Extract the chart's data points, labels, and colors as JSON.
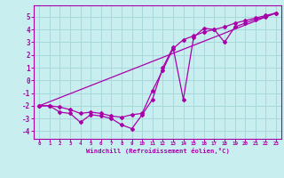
{
  "background_color": "#c8eef0",
  "grid_color": "#a8d8dc",
  "line_color": "#aa00aa",
  "xlabel": "Windchill (Refroidissement éolien,°C)",
  "xlabel_color": "#aa00aa",
  "tick_color": "#aa00aa",
  "xlim": [
    -0.5,
    23.5
  ],
  "ylim": [
    -4.6,
    5.9
  ],
  "yticks": [
    -4,
    -3,
    -2,
    -1,
    0,
    1,
    2,
    3,
    4,
    5
  ],
  "xticks": [
    0,
    1,
    2,
    3,
    4,
    5,
    6,
    7,
    8,
    9,
    10,
    11,
    12,
    13,
    14,
    15,
    16,
    17,
    18,
    19,
    20,
    21,
    22,
    23
  ],
  "line1_x": [
    0,
    1,
    2,
    3,
    4,
    5,
    6,
    7,
    8,
    9,
    10,
    11,
    12,
    13,
    14,
    15,
    16,
    17,
    18,
    19,
    20,
    21,
    22,
    23
  ],
  "line1_y": [
    -2.0,
    -2.0,
    -2.5,
    -2.6,
    -3.3,
    -2.7,
    -2.8,
    -3.0,
    -3.5,
    -3.8,
    -2.7,
    -1.5,
    1.0,
    2.6,
    -1.5,
    3.4,
    4.1,
    4.0,
    3.0,
    4.2,
    4.5,
    4.8,
    5.0,
    5.3
  ],
  "line2_x": [
    0,
    1,
    2,
    3,
    4,
    5,
    6,
    7,
    8,
    9,
    10,
    11,
    12,
    13,
    14,
    15,
    16,
    17,
    18,
    19,
    20,
    21,
    22,
    23
  ],
  "line2_y": [
    -2.0,
    -2.0,
    -2.1,
    -2.3,
    -2.6,
    -2.5,
    -2.6,
    -2.8,
    -2.9,
    -2.7,
    -2.6,
    -0.8,
    0.8,
    2.5,
    3.2,
    3.5,
    3.8,
    4.0,
    4.2,
    4.5,
    4.7,
    4.9,
    5.1,
    5.3
  ],
  "line3_x": [
    0,
    23
  ],
  "line3_y": [
    -2.0,
    5.3
  ]
}
